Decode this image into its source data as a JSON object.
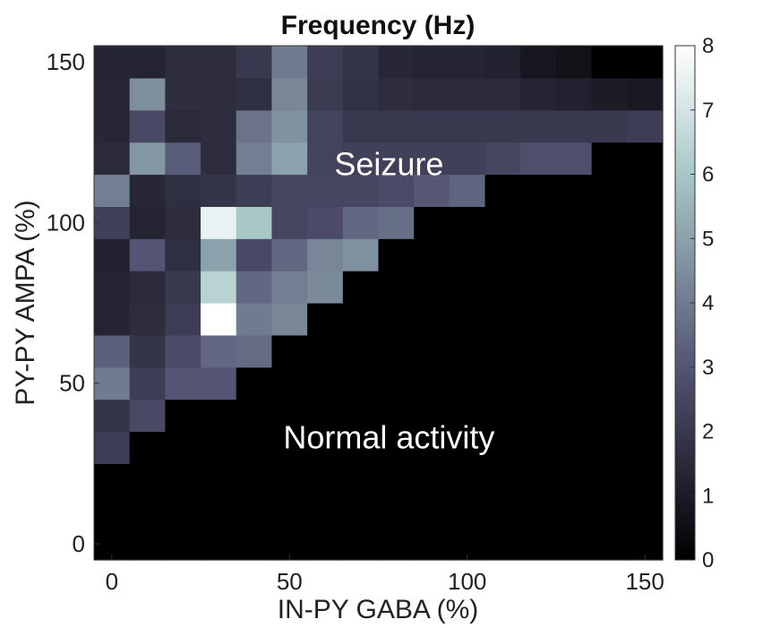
{
  "chart_data": {
    "type": "heatmap",
    "title": "Frequency (Hz)",
    "xlabel": "IN-PY GABA (%)",
    "ylabel": "PY-PY AMPA (%)",
    "x_values": [
      0,
      10,
      20,
      30,
      40,
      50,
      60,
      70,
      80,
      90,
      100,
      110,
      120,
      130,
      140,
      150
    ],
    "y_values": [
      0,
      10,
      20,
      30,
      40,
      50,
      60,
      70,
      80,
      90,
      100,
      110,
      120,
      130,
      140,
      150
    ],
    "xlim": [
      -5,
      155
    ],
    "ylim": [
      -5,
      155
    ],
    "x_ticks": [
      0,
      50,
      100,
      150
    ],
    "y_ticks": [
      0,
      50,
      100,
      150
    ],
    "x_tick_labels": [
      "0",
      "50",
      "100",
      "150"
    ],
    "y_tick_labels": [
      "0",
      "50",
      "100",
      "150"
    ],
    "colorbar": {
      "min": 0,
      "max": 8,
      "ticks": [
        0,
        1,
        2,
        3,
        4,
        5,
        6,
        7,
        8
      ],
      "tick_labels": [
        "0",
        "1",
        "2",
        "3",
        "4",
        "5",
        "6",
        "7",
        "8"
      ],
      "colormap": "bone"
    },
    "z": [
      [
        0.0,
        0.0,
        0.0,
        0.0,
        0.0,
        0.0,
        0.0,
        0.0,
        0.0,
        0.0,
        0.0,
        0.0,
        0.0,
        0.0,
        0.0,
        0.0
      ],
      [
        0.0,
        0.0,
        0.0,
        0.0,
        0.0,
        0.0,
        0.0,
        0.0,
        0.0,
        0.0,
        0.0,
        0.0,
        0.0,
        0.0,
        0.0,
        0.0
      ],
      [
        0.0,
        0.0,
        0.0,
        0.0,
        0.0,
        0.0,
        0.0,
        0.0,
        0.0,
        0.0,
        0.0,
        0.0,
        0.0,
        0.0,
        0.0,
        0.0
      ],
      [
        2.2,
        0.0,
        0.0,
        0.0,
        0.0,
        0.0,
        0.0,
        0.0,
        0.0,
        0.0,
        0.0,
        0.0,
        0.0,
        0.0,
        0.0,
        0.0
      ],
      [
        1.9,
        2.6,
        0.0,
        0.0,
        0.0,
        0.0,
        0.0,
        0.0,
        0.0,
        0.0,
        0.0,
        0.0,
        0.0,
        0.0,
        0.0,
        0.0
      ],
      [
        4.0,
        2.2,
        3.0,
        3.0,
        0.0,
        0.0,
        0.0,
        0.0,
        0.0,
        0.0,
        0.0,
        0.0,
        0.0,
        0.0,
        0.0,
        0.0
      ],
      [
        3.3,
        1.9,
        2.7,
        3.5,
        3.6,
        0.0,
        0.0,
        0.0,
        0.0,
        0.0,
        0.0,
        0.0,
        0.0,
        0.0,
        0.0,
        0.0
      ],
      [
        1.3,
        1.6,
        2.2,
        8.0,
        4.0,
        4.3,
        0.0,
        0.0,
        0.0,
        0.0,
        0.0,
        0.0,
        0.0,
        0.0,
        0.0,
        0.0
      ],
      [
        1.3,
        1.5,
        2.0,
        6.4,
        3.5,
        4.1,
        4.4,
        0.0,
        0.0,
        0.0,
        0.0,
        0.0,
        0.0,
        0.0,
        0.0,
        0.0
      ],
      [
        1.2,
        3.0,
        1.7,
        5.0,
        2.6,
        3.5,
        4.3,
        4.6,
        0.0,
        0.0,
        0.0,
        0.0,
        0.0,
        0.0,
        0.0,
        0.0
      ],
      [
        2.3,
        1.3,
        1.6,
        7.5,
        6.0,
        2.5,
        2.7,
        3.5,
        3.7,
        0.0,
        0.0,
        0.0,
        0.0,
        0.0,
        0.0,
        0.0
      ],
      [
        4.1,
        1.4,
        1.7,
        1.9,
        2.2,
        2.5,
        2.5,
        2.5,
        2.7,
        3.1,
        3.4,
        0.0,
        0.0,
        0.0,
        0.0,
        0.0
      ],
      [
        1.5,
        4.7,
        3.2,
        1.6,
        4.1,
        5.0,
        2.4,
        2.3,
        2.3,
        2.3,
        2.3,
        2.5,
        2.8,
        2.8,
        0.0,
        0.0
      ],
      [
        1.4,
        2.6,
        1.5,
        1.6,
        3.8,
        4.6,
        2.4,
        2.0,
        2.0,
        2.0,
        2.0,
        2.0,
        2.0,
        2.0,
        2.0,
        2.2
      ],
      [
        1.4,
        4.5,
        1.6,
        1.6,
        1.7,
        4.3,
        2.1,
        1.8,
        1.6,
        1.5,
        1.5,
        1.5,
        1.3,
        1.2,
        1.0,
        0.9
      ],
      [
        1.3,
        1.3,
        1.6,
        1.6,
        2.0,
        4.0,
        2.2,
        1.9,
        1.4,
        1.3,
        1.3,
        1.2,
        0.8,
        0.6,
        0.0,
        0.0
      ]
    ],
    "annotations": [
      {
        "text": "Seizure",
        "x": 78,
        "y": 118
      },
      {
        "text": "Normal activity",
        "x": 78,
        "y": 33
      }
    ],
    "grid": false,
    "legend": "none"
  }
}
